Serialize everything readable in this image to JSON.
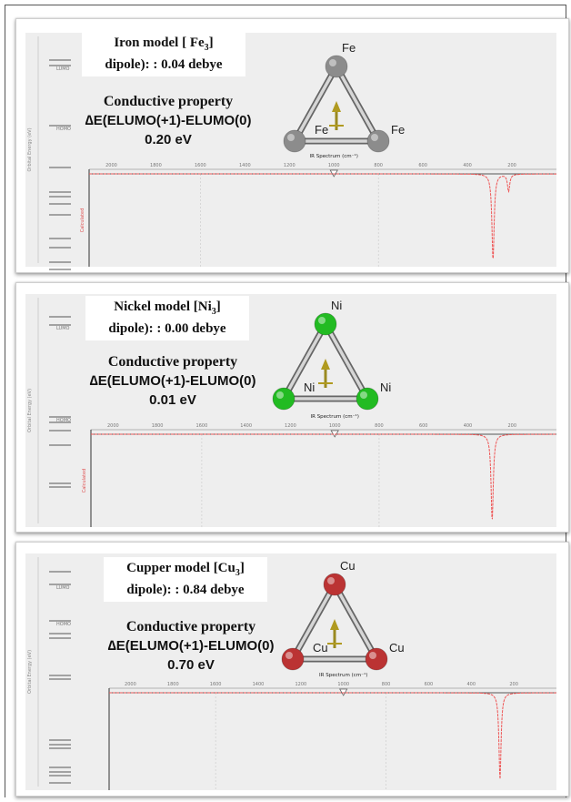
{
  "panels": [
    {
      "element": "Fe",
      "title_main": "Iron model [ Fe",
      "title_sub": "3",
      "title_end": "]",
      "dipole": "dipole): : 0.04 debye",
      "property_title": "Conductive property",
      "property_formula": "∆E(ELUMO(+1)-ELUMO(0)",
      "property_value": "0.20 eV",
      "atom_color": "#8c8c8c",
      "spectrum_label": "IR Spectrum (cm⁻¹)",
      "calculated_label": "Calculated",
      "energy_axis_label": "Orbital Energy (eV)",
      "lumo_label": "LUMO",
      "homo_label": "HOMO",
      "ticks": [
        "2000",
        "1800",
        "1600",
        "1400",
        "1200",
        "1000",
        "800",
        "600",
        "400",
        "200"
      ],
      "peaks": [
        {
          "wavenumber": 285,
          "depth": 1.0
        },
        {
          "wavenumber": 215,
          "depth": 0.2
        }
      ]
    },
    {
      "element": "Ni",
      "title_main": "Nickel model [Ni",
      "title_sub": "3",
      "title_end": "]",
      "dipole": "dipole): : 0.00 debye",
      "property_title": "Conductive property",
      "property_formula": "∆E(ELUMO(+1)-ELUMO(0)",
      "property_value": "0.01 eV",
      "atom_color": "#22bb22",
      "spectrum_label": "IR Spectrum (cm⁻¹)",
      "calculated_label": "Calculated",
      "energy_axis_label": "Orbital Energy (eV)",
      "lumo_label": "LUMO",
      "homo_label": "HOMO",
      "ticks": [
        "2000",
        "1800",
        "1600",
        "1400",
        "1200",
        "1000",
        "800",
        "600",
        "400",
        "200"
      ],
      "peaks": [
        {
          "wavenumber": 290,
          "depth": 1.0
        }
      ]
    },
    {
      "element": "Cu",
      "title_main": "Cupper model [Cu",
      "title_sub": "3",
      "title_end": "]",
      "dipole": "dipole): : 0.84 debye",
      "property_title": "Conductive property",
      "property_formula": "∆E(ELUMO(+1)-ELUMO(0)",
      "property_value": "0.70 eV",
      "atom_color": "#bb3333",
      "spectrum_label": "IR Spectrum (cm⁻¹)",
      "calculated_label": "",
      "energy_axis_label": "Orbital Energy (eV)",
      "lumo_label": "LUMO",
      "homo_label": "HOMO",
      "ticks": [
        "2000",
        "1800",
        "1600",
        "1400",
        "1200",
        "1000",
        "800",
        "600",
        "400",
        "200"
      ],
      "peaks": [
        {
          "wavenumber": 265,
          "depth": 1.0
        }
      ]
    }
  ]
}
